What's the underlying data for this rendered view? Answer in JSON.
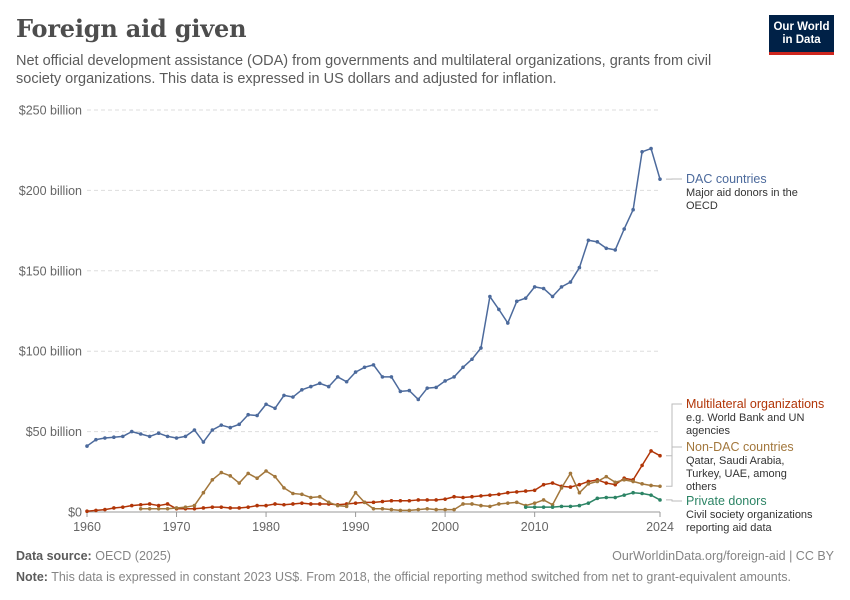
{
  "header": {
    "title": "Foreign aid given",
    "subtitle": "Net official development assistance (ODA) from governments and multilateral organizations, grants from civil society organizations. This data is expressed in US dollars and adjusted for inflation.",
    "logo_line1": "Our World",
    "logo_line2": "in Data"
  },
  "footer": {
    "source_label": "Data source:",
    "source_value": "OECD (2025)",
    "credit": "OurWorldinData.org/foreign-aid | CC BY",
    "note_label": "Note:",
    "note_value": "This data is expressed in constant 2023 US$. From 2018, the official reporting method switched from net to grant-equivalent amounts."
  },
  "chart_data": {
    "type": "line",
    "title": "Foreign aid given",
    "xlabel": "",
    "ylabel": "",
    "xlim": [
      1960,
      2024
    ],
    "ylim": [
      0,
      250
    ],
    "grid": true,
    "x_ticks": [
      1960,
      1970,
      1980,
      1990,
      2000,
      2010,
      2024
    ],
    "x_tick_labels": [
      "1960",
      "1970",
      "1980",
      "1990",
      "2000",
      "2010",
      "2024"
    ],
    "y_ticks": [
      0,
      50,
      100,
      150,
      200,
      250
    ],
    "y_tick_labels": [
      "$0",
      "$50 billion",
      "$100 billion",
      "$150 billion",
      "$200 billion",
      "$250 billion"
    ],
    "series": [
      {
        "name": "DAC countries",
        "description": "Major aid donors in the OECD",
        "color": "#4c6a9c",
        "x": [
          1960,
          1961,
          1962,
          1963,
          1964,
          1965,
          1966,
          1967,
          1968,
          1969,
          1970,
          1971,
          1972,
          1973,
          1974,
          1975,
          1976,
          1977,
          1978,
          1979,
          1980,
          1981,
          1982,
          1983,
          1984,
          1985,
          1986,
          1987,
          1988,
          1989,
          1990,
          1991,
          1992,
          1993,
          1994,
          1995,
          1996,
          1997,
          1998,
          1999,
          2000,
          2001,
          2002,
          2003,
          2004,
          2005,
          2006,
          2007,
          2008,
          2009,
          2010,
          2011,
          2012,
          2013,
          2014,
          2015,
          2016,
          2017,
          2018,
          2019,
          2020,
          2021,
          2022,
          2023,
          2024
        ],
        "values": [
          41,
          45,
          46,
          46.5,
          47,
          50,
          48.5,
          47,
          49,
          47,
          46,
          47,
          51,
          43.5,
          51,
          54,
          52.5,
          54.5,
          60.5,
          60,
          67,
          64.5,
          72.5,
          71.5,
          76,
          78,
          80,
          78,
          84,
          81,
          87,
          90,
          91.5,
          84,
          84,
          75,
          75.5,
          70,
          77,
          77.5,
          81.5,
          84,
          90,
          95,
          102,
          134,
          126,
          117.5,
          131,
          133,
          140,
          139,
          134,
          140,
          143,
          152,
          169,
          168,
          164,
          163,
          176,
          188,
          224,
          226,
          207
        ]
      },
      {
        "name": "Multilateral organizations",
        "description": "e.g. World Bank and UN agencies",
        "color": "#b13507",
        "x": [
          1960,
          1961,
          1962,
          1963,
          1964,
          1965,
          1966,
          1967,
          1968,
          1969,
          1970,
          1971,
          1972,
          1973,
          1974,
          1975,
          1976,
          1977,
          1978,
          1979,
          1980,
          1981,
          1982,
          1983,
          1984,
          1985,
          1986,
          1987,
          1988,
          1989,
          1990,
          1991,
          1992,
          1993,
          1994,
          1995,
          1996,
          1997,
          1998,
          1999,
          2000,
          2001,
          2002,
          2003,
          2004,
          2005,
          2006,
          2007,
          2008,
          2009,
          2010,
          2011,
          2012,
          2013,
          2014,
          2015,
          2016,
          2017,
          2018,
          2019,
          2020,
          2021,
          2022,
          2023,
          2024
        ],
        "values": [
          0.5,
          1,
          1.5,
          2.5,
          3,
          4,
          4.5,
          5,
          4,
          5,
          2,
          2,
          2,
          2.5,
          3,
          3,
          2.5,
          2.5,
          3,
          4,
          4,
          5,
          4.5,
          5,
          5.5,
          5,
          5,
          5,
          4.5,
          5,
          5.5,
          6,
          6,
          6.5,
          7,
          7,
          7,
          7.5,
          7.5,
          7.5,
          8,
          9.5,
          9,
          9.5,
          10,
          10.5,
          11,
          12,
          12.5,
          13,
          13.5,
          17,
          18,
          16,
          15.5,
          17,
          19,
          20,
          18,
          17,
          21,
          20,
          29,
          38,
          35
        ]
      },
      {
        "name": "Non-DAC countries",
        "description": "Qatar, Saudi Arabia, Turkey, UAE, among others",
        "color": "#a2773c",
        "x": [
          1966,
          1967,
          1968,
          1969,
          1970,
          1971,
          1972,
          1973,
          1974,
          1975,
          1976,
          1977,
          1978,
          1979,
          1980,
          1981,
          1982,
          1983,
          1984,
          1985,
          1986,
          1987,
          1988,
          1989,
          1990,
          1991,
          1992,
          1993,
          1994,
          1995,
          1996,
          1997,
          1998,
          1999,
          2000,
          2001,
          2002,
          2003,
          2004,
          2005,
          2006,
          2007,
          2008,
          2009,
          2010,
          2011,
          2012,
          2013,
          2014,
          2015,
          2016,
          2017,
          2018,
          2019,
          2020,
          2021,
          2022,
          2023,
          2024
        ],
        "values": [
          2,
          2,
          2,
          2,
          2.5,
          3,
          4,
          12,
          20,
          24.5,
          22.5,
          18,
          24,
          21,
          25.5,
          22,
          15,
          11.5,
          11,
          9,
          9.5,
          6,
          4,
          3.5,
          12,
          6,
          2,
          2,
          1.5,
          1,
          1,
          1.5,
          2,
          1.5,
          1.5,
          1.5,
          5,
          5,
          4,
          3.5,
          5,
          5.5,
          6,
          4,
          5.5,
          7.5,
          4.5,
          15,
          24,
          12,
          17.5,
          19,
          22,
          18.5,
          20,
          19,
          17.5,
          16.5,
          16
        ]
      },
      {
        "name": "Private donors",
        "description": "Civil society organizations reporting aid data",
        "color": "#2c8465",
        "x": [
          2009,
          2010,
          2011,
          2012,
          2013,
          2014,
          2015,
          2016,
          2017,
          2018,
          2019,
          2020,
          2021,
          2022,
          2023,
          2024
        ],
        "values": [
          3,
          3,
          3,
          3,
          3.5,
          3.5,
          4,
          5.5,
          8.5,
          9,
          9,
          10.5,
          12,
          11.5,
          10.5,
          7.5
        ]
      }
    ]
  }
}
